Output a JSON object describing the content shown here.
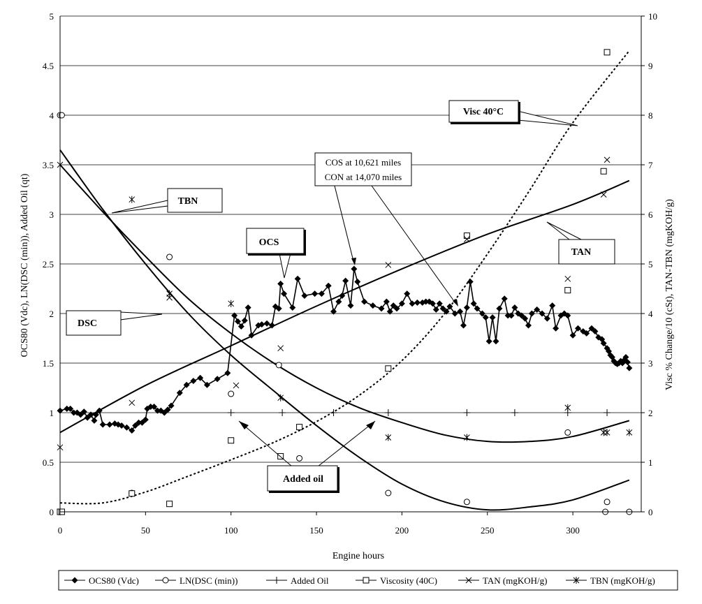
{
  "chart_data": {
    "type": "line",
    "xlabel": "Engine hours",
    "ylabel": "OCS80 (Vdc), LN(DSC (min)), Added Oil (qt)",
    "y2label": "Visc % Change/10 (cSt), TAN-TBN (mgKOH/g)",
    "xlim": [
      0,
      340
    ],
    "ylim": [
      0,
      5
    ],
    "y2lim": [
      0,
      10
    ],
    "xticks": [
      "0",
      "50",
      "100",
      "150",
      "200",
      "250",
      "300"
    ],
    "yticks": [
      "0",
      "0.5",
      "1",
      "1.5",
      "2",
      "2.5",
      "3",
      "3.5",
      "4",
      "4.5",
      "5"
    ],
    "y2ticks": [
      "0",
      "1",
      "2",
      "3",
      "4",
      "5",
      "6",
      "7",
      "8",
      "9",
      "10"
    ],
    "grid": "horizontal",
    "legend_position": "bottom",
    "series": [
      {
        "name": "OCS80 (Vdc)",
        "axis": "left",
        "marker": "diamond",
        "x": [
          0,
          4,
          6,
          8,
          10,
          12,
          14,
          16,
          18,
          20,
          21,
          23,
          25,
          29,
          32,
          34,
          36,
          39,
          42,
          44,
          46,
          48,
          50,
          51,
          53,
          55,
          57,
          59,
          61,
          63,
          65,
          70,
          74,
          78,
          82,
          86,
          92,
          98,
          102,
          104,
          106,
          108,
          110,
          112,
          116,
          118,
          121,
          124,
          126,
          128,
          129,
          131,
          136,
          139,
          143,
          149,
          153,
          157,
          160,
          163,
          165,
          167,
          170,
          172,
          174,
          178,
          183,
          188,
          191,
          193,
          195,
          197,
          200,
          203,
          206,
          209,
          212,
          214,
          216,
          218,
          220,
          222,
          224,
          226,
          228,
          231,
          234,
          236,
          238,
          240,
          242,
          244,
          247,
          249,
          251,
          253,
          255,
          257,
          260,
          262,
          264,
          266,
          268,
          270,
          272,
          274,
          276,
          279,
          282,
          285,
          288,
          290,
          293,
          295,
          297,
          300,
          303,
          306,
          308,
          311,
          313,
          315,
          317,
          318,
          320,
          321,
          322,
          323,
          324,
          325,
          326,
          327,
          328,
          329,
          330,
          331,
          332,
          333
        ],
        "values": [
          1.02,
          1.04,
          1.04,
          1.0,
          1.0,
          0.98,
          1.01,
          0.95,
          0.98,
          0.92,
          0.98,
          1.02,
          0.88,
          0.88,
          0.89,
          0.88,
          0.87,
          0.85,
          0.82,
          0.87,
          0.9,
          0.9,
          0.93,
          1.04,
          1.06,
          1.06,
          1.02,
          1.02,
          1.0,
          1.03,
          1.07,
          1.2,
          1.28,
          1.32,
          1.35,
          1.28,
          1.34,
          1.4,
          1.98,
          1.92,
          1.87,
          1.93,
          2.06,
          1.78,
          1.88,
          1.89,
          1.9,
          1.88,
          2.07,
          2.05,
          2.3,
          2.2,
          2.06,
          2.35,
          2.18,
          2.2,
          2.2,
          2.28,
          2.02,
          2.12,
          2.18,
          2.33,
          2.08,
          2.45,
          2.32,
          2.12,
          2.08,
          2.05,
          2.12,
          2.02,
          2.08,
          2.05,
          2.1,
          2.2,
          2.1,
          2.11,
          2.11,
          2.12,
          2.12,
          2.1,
          2.04,
          2.1,
          2.05,
          2.02,
          2.07,
          2.0,
          2.02,
          1.88,
          2.06,
          2.32,
          2.1,
          2.05,
          2.0,
          1.96,
          1.72,
          1.96,
          1.72,
          2.05,
          2.15,
          1.98,
          1.98,
          2.06,
          2.0,
          1.98,
          1.95,
          1.88,
          2.0,
          2.04,
          2.0,
          1.95,
          2.08,
          1.85,
          1.98,
          2.0,
          1.98,
          1.78,
          1.85,
          1.82,
          1.8,
          1.85,
          1.82,
          1.76,
          1.74,
          1.7,
          1.65,
          1.62,
          1.58,
          1.56,
          1.52,
          1.5,
          1.49,
          1.5,
          1.52,
          1.5,
          1.53,
          1.56,
          1.51,
          1.45
        ]
      },
      {
        "name": "LN(DSC (min))",
        "axis": "left",
        "marker": "circle",
        "x": [
          0,
          1,
          42,
          64,
          100,
          128,
          140,
          192,
          238,
          297,
          319,
          320,
          333
        ],
        "values": [
          4.0,
          4.0,
          0.19,
          2.57,
          1.19,
          1.48,
          0.54,
          0.19,
          0.1,
          0.8,
          0.0,
          0.1,
          0.0
        ]
      },
      {
        "name": "Added Oil",
        "axis": "left",
        "marker": "plus",
        "x": [
          100,
          130,
          160,
          192,
          238,
          266,
          297,
          320
        ],
        "values": [
          1.0,
          1.0,
          1.0,
          1.0,
          1.0,
          1.0,
          1.0,
          1.0
        ]
      },
      {
        "name": "Viscosity (40C)",
        "axis": "right",
        "marker": "square",
        "x": [
          0,
          1,
          42,
          64,
          100,
          129,
          140,
          192,
          238,
          297,
          318,
          320
        ],
        "values": [
          0.0,
          0.0,
          0.37,
          0.16,
          1.44,
          1.12,
          1.71,
          2.89,
          5.57,
          4.47,
          6.87,
          9.27
        ]
      },
      {
        "name": "TAN (mgKOH/g)",
        "axis": "right",
        "marker": "x",
        "x": [
          0,
          42,
          64,
          103,
          129,
          192,
          238,
          297,
          318,
          320
        ],
        "values": [
          1.3,
          2.2,
          4.32,
          2.55,
          3.3,
          4.98,
          5.5,
          4.7,
          6.4,
          7.1
        ]
      },
      {
        "name": "TBN (mgKOH/g)",
        "axis": "right",
        "marker": "asterisk",
        "x": [
          0,
          42,
          64,
          100,
          129,
          192,
          238,
          297,
          318,
          320,
          333
        ],
        "values": [
          7.0,
          6.3,
          4.4,
          4.2,
          2.3,
          1.5,
          1.5,
          2.1,
          1.6,
          1.6,
          1.6
        ]
      }
    ],
    "trendlines": {
      "DSC": {
        "axis": "left",
        "x": [
          0,
          25,
          50,
          75,
          100,
          125,
          150,
          175,
          200,
          225,
          250,
          275,
          300,
          333
        ],
        "values": [
          3.65,
          3.05,
          2.5,
          2.0,
          1.58,
          1.22,
          0.87,
          0.55,
          0.28,
          0.1,
          0.02,
          0.05,
          0.12,
          0.32
        ]
      },
      "TBN": {
        "axis": "right",
        "x": [
          0,
          25,
          50,
          75,
          100,
          125,
          150,
          175,
          200,
          225,
          250,
          275,
          300,
          333
        ],
        "values": [
          7.0,
          6.05,
          5.15,
          4.3,
          3.6,
          3.0,
          2.5,
          2.1,
          1.8,
          1.55,
          1.42,
          1.42,
          1.52,
          1.84
        ]
      },
      "TAN": {
        "axis": "right",
        "x": [
          0,
          50,
          100,
          150,
          200,
          250,
          300,
          333
        ],
        "values": [
          1.6,
          2.55,
          3.35,
          4.15,
          4.9,
          5.6,
          6.2,
          6.68
        ]
      },
      "Visc 40°C": {
        "axis": "right",
        "dashed": true,
        "x": [
          0,
          25,
          50,
          75,
          100,
          125,
          150,
          175,
          200,
          225,
          250,
          275,
          300,
          333
        ],
        "values": [
          0.18,
          0.18,
          0.4,
          0.72,
          1.05,
          1.4,
          1.82,
          2.35,
          3.05,
          4.0,
          5.2,
          6.5,
          7.85,
          9.3
        ]
      }
    },
    "annotations": [
      {
        "text": "Visc 40°C"
      },
      {
        "text": "TBN"
      },
      {
        "text": "OCS"
      },
      {
        "text": "TAN"
      },
      {
        "text": "DSC"
      },
      {
        "text": "Added oil"
      },
      {
        "text": "COS at 10,621 miles"
      },
      {
        "text": "CON at 14,070 miles"
      }
    ]
  }
}
